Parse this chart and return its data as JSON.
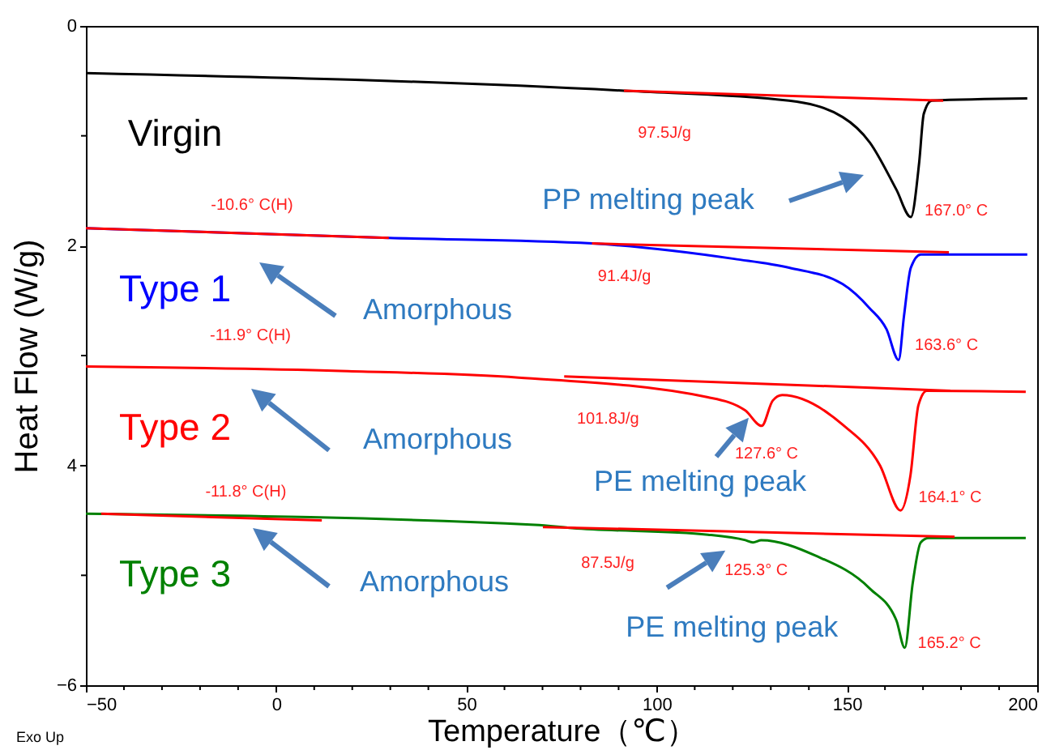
{
  "chart_data": {
    "type": "line",
    "xlabel": "Temperature（℃）",
    "ylabel": "Heat Flow (W/g)",
    "xlim": [
      -50,
      200
    ],
    "xticks": [
      -50,
      {
        "value": -40,
        "label": null
      },
      {
        "value": -30,
        "label": null
      },
      {
        "value": -20,
        "label": null
      },
      {
        "value": -10,
        "label": null
      },
      0,
      {
        "value": 10,
        "label": null
      },
      {
        "value": 20,
        "label": null
      },
      {
        "value": 30,
        "label": null
      },
      {
        "value": 40,
        "label": null
      },
      50,
      {
        "value": 60,
        "label": null
      },
      {
        "value": 70,
        "label": null
      },
      {
        "value": 80,
        "label": null
      },
      {
        "value": 90,
        "label": null
      },
      100,
      {
        "value": 110,
        "label": null
      },
      {
        "value": 120,
        "label": null
      },
      {
        "value": 130,
        "label": null
      },
      {
        "value": 140,
        "label": null
      },
      150,
      {
        "value": 160,
        "label": null
      },
      {
        "value": 170,
        "label": null
      },
      {
        "value": 180,
        "label": null
      },
      {
        "value": 190,
        "label": null
      },
      200
    ],
    "ylim": [
      -6,
      0
    ],
    "yticks": [
      0,
      {
        "value": -1,
        "label": null
      },
      {
        "value": -2,
        "label": "2"
      },
      {
        "value": -3,
        "label": null
      },
      {
        "value": -4,
        "label": "4"
      },
      {
        "value": -5,
        "label": null
      },
      -6
    ],
    "grid": false,
    "line_style": "solid",
    "series": [
      {
        "name": "Virgin",
        "color": "#000000",
        "x": [
          -50,
          91.4,
          134.8,
          148.9,
          156,
          163,
          166.8,
          169,
          170.2,
          172.3,
          197.4
        ],
        "values": [
          -0.43,
          -0.59,
          -0.68,
          -0.83,
          -1.06,
          -1.49,
          -1.74,
          -1.24,
          -0.8,
          -0.68,
          -0.66
        ]
      },
      {
        "name": "Type 1",
        "color": "#0000ff",
        "x": [
          -50,
          29.6,
          83,
          120.4,
          134.8,
          148.9,
          156,
          160.4,
          163.6,
          165,
          166.8,
          169.4,
          197.4
        ],
        "values": [
          -1.84,
          -1.93,
          -1.98,
          -2.12,
          -2.2,
          -2.35,
          -2.57,
          -2.76,
          -3.04,
          -2.64,
          -2.2,
          -2.08,
          -2.08
        ]
      },
      {
        "name": "Type 2",
        "color": "#ff0000",
        "x": [
          -50,
          16.9,
          63.7,
          113.5,
          123.3,
          127.6,
          130.5,
          133,
          148.9,
          158.7,
          164.1,
          166.7,
          168.8,
          171,
          197
        ],
        "values": [
          -3.1,
          -3.14,
          -3.2,
          -3.38,
          -3.5,
          -3.64,
          -3.41,
          -3.36,
          -3.63,
          -4.0,
          -4.41,
          -4.09,
          -3.45,
          -3.32,
          -3.33
        ]
      },
      {
        "name": "Type 3",
        "color": "#008000",
        "x": [
          -50,
          68,
          77.8,
          113.5,
          123.3,
          125.3,
          127.5,
          141.7,
          156,
          163,
          165.2,
          167.3,
          169.4,
          171.5,
          197
        ],
        "values": [
          -4.44,
          -4.54,
          -4.57,
          -4.63,
          -4.68,
          -4.7,
          -4.68,
          -4.82,
          -5.12,
          -5.41,
          -5.66,
          -5.07,
          -4.7,
          -4.66,
          -4.66
        ]
      },
      {
        "color": "#ff0000",
        "x": [
          91.4,
          175.3
        ],
        "values": [
          -0.59,
          -0.68
        ]
      },
      {
        "color": "#ff0000",
        "x": [
          -50,
          29.6
        ],
        "values": [
          -1.84,
          -1.93
        ]
      },
      {
        "color": "#ff0000",
        "x": [
          83,
          176.8
        ],
        "values": [
          -1.98,
          -2.06
        ]
      },
      {
        "color": "#ff0000",
        "x": [
          75.7,
          177.2
        ],
        "values": [
          -3.19,
          -3.32
        ]
      },
      {
        "color": "#ff0000",
        "x": [
          -46,
          12
        ],
        "values": [
          -4.44,
          -4.5
        ]
      },
      {
        "color": "#ff0000",
        "x": [
          70.1,
          178.3
        ],
        "values": [
          -4.56,
          -4.65
        ]
      }
    ],
    "annotations": [
      {
        "text": "97.5J/g",
        "x": 91.4,
        "y": -0.59
      },
      {
        "text": "167.0° C",
        "x": 167.0,
        "y": -1.74
      },
      "PP melting peak",
      {
        "text": "-10.6° C(H)",
        "x": -10.6,
        "y": -1.88
      },
      "Amorphous",
      {
        "text": "91.4J/g",
        "x": 83,
        "y": -1.98
      },
      {
        "text": "163.6° C",
        "x": 163.6,
        "y": -3.04
      },
      {
        "text": "-11.9° C(H)",
        "x": -11.9,
        "y": -3.14
      },
      "Amorphous",
      {
        "text": "101.8J/g",
        "x": 75.7,
        "y": -3.19
      },
      {
        "text": "127.6° C",
        "x": 127.6,
        "y": -3.64
      },
      {
        "text": "PE melting peak",
        "x": 127.6,
        "y": -3.64
      },
      {
        "text": "164.1° C",
        "x": 164.1,
        "y": -4.41
      },
      {
        "text": "-11.8° C(H)",
        "x": -11.8,
        "y": -4.5
      },
      "Amorphous",
      {
        "text": "87.5J/g",
        "x": 70.1,
        "y": -4.56
      },
      {
        "text": "125.3° C",
        "x": 125.3,
        "y": -4.7
      },
      {
        "text": "PE melting peak",
        "x": 125.3,
        "y": -4.7
      },
      {
        "text": "165.2° C",
        "x": 165.2,
        "y": -5.66
      },
      "Exo Up"
    ]
  }
}
